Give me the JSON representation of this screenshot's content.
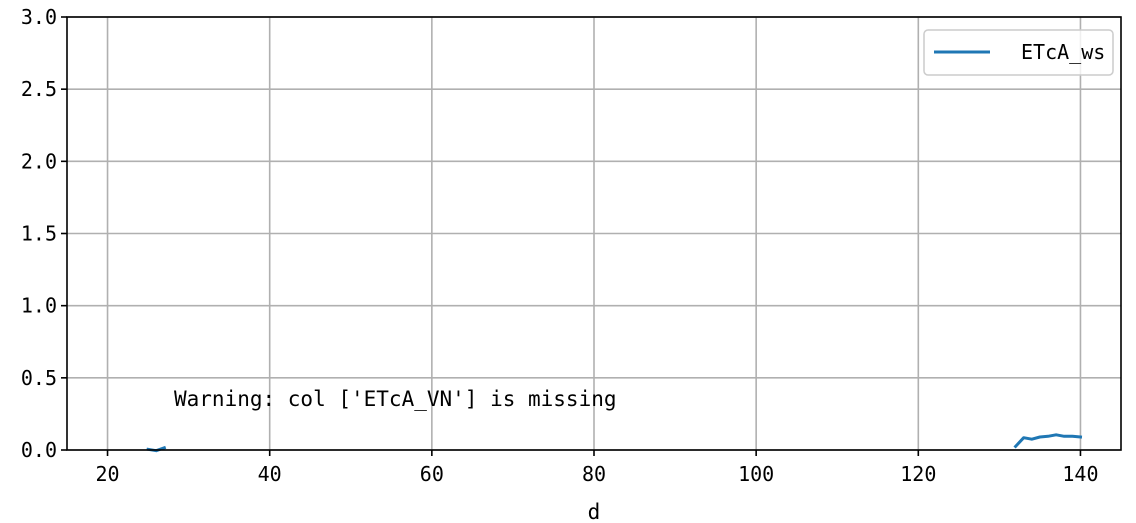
{
  "chart_data": {
    "type": "line",
    "xlabel": "d",
    "ylabel": "",
    "xlim": [
      15,
      145
    ],
    "ylim": [
      0,
      3
    ],
    "x_ticks": [
      20,
      40,
      60,
      80,
      100,
      120,
      140
    ],
    "x_tick_labels": [
      "20",
      "40",
      "60",
      "80",
      "100",
      "120",
      "140"
    ],
    "y_ticks": [
      0,
      0.5,
      1,
      1.5,
      2,
      2.5,
      3
    ],
    "y_tick_labels": [
      "0.0",
      "0.5",
      "1.0",
      "1.5",
      "2.0",
      "2.5",
      "3.0"
    ],
    "grid": true,
    "legend_position": "upper right",
    "series": [
      {
        "name": "ETcA_ws",
        "color": "#1f77b4",
        "segments": [
          {
            "x": [
              25,
              26,
              27
            ],
            "y": [
              0.005,
              -0.005,
              0.015
            ]
          },
          {
            "x": [
              132,
              133,
              134,
              135,
              136,
              137,
              138,
              139,
              140
            ],
            "y": [
              0.025,
              0.085,
              0.075,
              0.09,
              0.095,
              0.105,
              0.095,
              0.095,
              0.09
            ]
          }
        ]
      }
    ],
    "annotation": "Warning: col ['ETcA_VN'] is missing"
  }
}
